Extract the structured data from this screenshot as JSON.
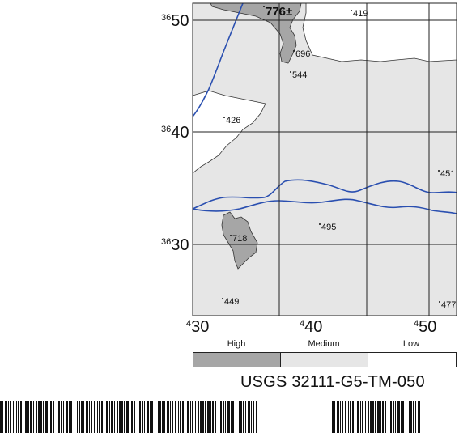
{
  "map": {
    "grid_rows": [
      {
        "base": "36",
        "value": "50"
      },
      {
        "base": "36",
        "value": "40"
      },
      {
        "base": "36",
        "value": "30"
      }
    ],
    "grid_cols": [
      {
        "base": "4",
        "value": "30"
      },
      {
        "base": "4",
        "value": "40"
      },
      {
        "base": "4",
        "value": "50"
      }
    ],
    "elevations": [
      "776±",
      "419",
      "696",
      "544",
      "426",
      "451",
      "718",
      "495",
      "449",
      "477"
    ],
    "colors": {
      "high": "#a6a6a6",
      "medium": "#e6e6e6",
      "low": "#ffffff",
      "river": "#2a4fb0",
      "grid": "#222222"
    }
  },
  "legend": {
    "levels": [
      {
        "label": "High",
        "color": "#a6a6a6"
      },
      {
        "label": "Medium",
        "color": "#e6e6e6"
      },
      {
        "label": "Low",
        "color": "#ffffff"
      }
    ]
  },
  "footer": {
    "map_id": "USGS  32111-G5-TM-050"
  }
}
